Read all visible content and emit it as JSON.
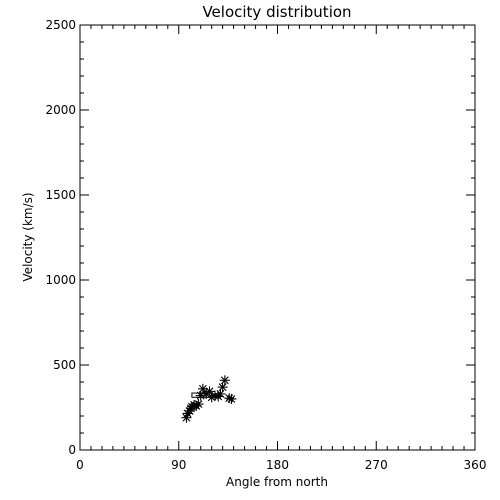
{
  "chart_data": {
    "type": "scatter",
    "title": "Velocity distribution",
    "xlabel": "Angle from north",
    "ylabel": "Velocity (km/s)",
    "xlim": [
      0,
      360
    ],
    "ylim": [
      0,
      2500
    ],
    "x_ticks": [
      0,
      90,
      180,
      270,
      360
    ],
    "y_ticks": [
      0,
      500,
      1000,
      1500,
      2000,
      2500
    ],
    "x_minor_step": 10,
    "y_minor_step": 100,
    "grid": false,
    "marker": "asterisk",
    "points": [
      {
        "x": 97,
        "y": 190
      },
      {
        "x": 98,
        "y": 215
      },
      {
        "x": 100,
        "y": 230
      },
      {
        "x": 101,
        "y": 245
      },
      {
        "x": 102,
        "y": 255
      },
      {
        "x": 104,
        "y": 265
      },
      {
        "x": 106,
        "y": 260
      },
      {
        "x": 108,
        "y": 270
      },
      {
        "x": 110,
        "y": 320
      },
      {
        "x": 112,
        "y": 360
      },
      {
        "x": 115,
        "y": 330
      },
      {
        "x": 118,
        "y": 345
      },
      {
        "x": 120,
        "y": 310
      },
      {
        "x": 123,
        "y": 320
      },
      {
        "x": 126,
        "y": 315
      },
      {
        "x": 128,
        "y": 330
      },
      {
        "x": 130,
        "y": 370
      },
      {
        "x": 132,
        "y": 410
      },
      {
        "x": 136,
        "y": 305
      },
      {
        "x": 138,
        "y": 300
      }
    ],
    "median_box": {
      "x": [
        102,
        115
      ],
      "y": [
        310,
        335
      ]
    }
  }
}
